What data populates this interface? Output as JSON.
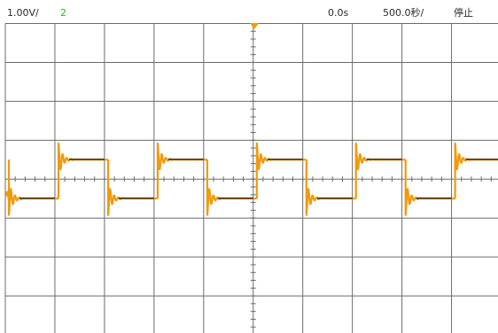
{
  "status_bar": {
    "vertical_scale": "1.00V/",
    "channel_number": "2",
    "time_delay": "0.0s",
    "time_scale": "500.0秒/",
    "run_state": "停止"
  },
  "colors": {
    "channel_number": "#2fae2f",
    "trace": "#f09a0c",
    "trace_ringing": "#2a1c0a",
    "trigger_marker": "#f09a0c",
    "grid": "#6b6b6b"
  },
  "waveform": {
    "type": "square-wave-with-overshoot-ringing",
    "high_level_div": 0.5,
    "low_level_div": -0.5,
    "edges_per_10_divisions": 10
  }
}
